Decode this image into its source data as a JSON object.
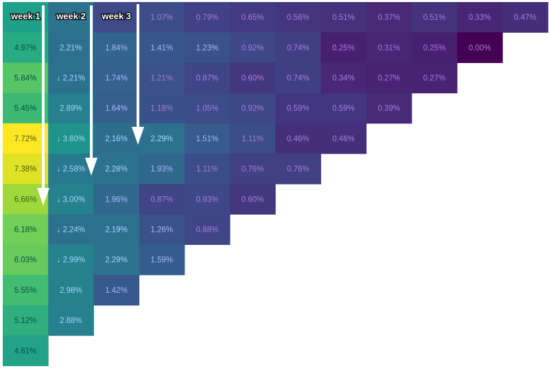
{
  "chart_data": {
    "type": "heatmap",
    "description_of_shape": "triangular cohort retention heatmap",
    "week_labels": [
      "week 1",
      "week 2",
      "week 3"
    ],
    "rows": [
      {
        "values": [
          null,
          null,
          null,
          1.07,
          0.79,
          0.65,
          0.56,
          0.51,
          0.37,
          0.51,
          0.33,
          0.47
        ],
        "labels": [
          "",
          "",
          "",
          "1.07%",
          "0.79%",
          "0.65%",
          "0.56%",
          "0.51%",
          "0.37%",
          "0.51%",
          "0.33%",
          "0.47%"
        ]
      },
      {
        "values": [
          4.97,
          2.21,
          1.84,
          1.41,
          1.23,
          0.92,
          0.74,
          0.25,
          0.31,
          0.25,
          0.0
        ],
        "labels": [
          "4.97%",
          "2.21%",
          "1.84%",
          "1.41%",
          "1.23%",
          "0.92%",
          "0.74%",
          "0.25%",
          "0.31%",
          "0.25%",
          "0.00%"
        ]
      },
      {
        "values": [
          5.84,
          2.21,
          1.74,
          1.21,
          0.87,
          0.6,
          0.74,
          0.34,
          0.27,
          0.27
        ],
        "labels": [
          "5.84%",
          "↓ 2.21%",
          "1.74%",
          "1.21%",
          "0.87%",
          "0.60%",
          "0.74%",
          "0.34%",
          "0.27%",
          "0.27%"
        ]
      },
      {
        "values": [
          5.45,
          2.89,
          1.64,
          1.18,
          1.05,
          0.92,
          0.59,
          0.59,
          0.39
        ],
        "labels": [
          "5.45%",
          "2.89%",
          "1.64%",
          "1.18%",
          "1.05%",
          "0.92%",
          "0.59%",
          "0.59%",
          "0.39%"
        ]
      },
      {
        "values": [
          7.72,
          3.8,
          2.16,
          2.29,
          1.51,
          1.11,
          0.46,
          0.46
        ],
        "labels": [
          "7.72%",
          "↓ 3.80%",
          "2.16%",
          "2.29%",
          "1.51%",
          "1.11%",
          "0.46%",
          "0.46%"
        ]
      },
      {
        "values": [
          7.38,
          2.58,
          2.28,
          1.93,
          1.11,
          0.76,
          0.76
        ],
        "labels": [
          "7.38%",
          "↓ 2.58%",
          "2.28%",
          "1.93%",
          "1.11%",
          "0.76%",
          "0.76%"
        ]
      },
      {
        "values": [
          6.66,
          3.0,
          1.96,
          0.87,
          0.93,
          0.6
        ],
        "labels": [
          "6.66%",
          "↓ 3.00%",
          "1.96%",
          "0.87%",
          "0.93%",
          "0.60%"
        ]
      },
      {
        "values": [
          6.18,
          2.24,
          2.19,
          1.26,
          0.88
        ],
        "labels": [
          "6.18%",
          "↓ 2.24%",
          "2.19%",
          "1.26%",
          "0.88%"
        ]
      },
      {
        "values": [
          6.03,
          2.99,
          2.29,
          1.59
        ],
        "labels": [
          "6.03%",
          "↓ 2.99%",
          "2.29%",
          "1.59%"
        ]
      },
      {
        "values": [
          5.55,
          2.98,
          1.42
        ],
        "labels": [
          "5.55%",
          "2.98%",
          "1.42%"
        ]
      },
      {
        "values": [
          5.12,
          2.88
        ],
        "labels": [
          "5.12%",
          "2.88%"
        ]
      },
      {
        "values": [
          4.61
        ],
        "labels": [
          "4.61%"
        ]
      }
    ],
    "color_scale": "viridis",
    "annotations": [
      "arrow down column week 1",
      "arrow down column week 2",
      "arrow down column week 3"
    ]
  }
}
